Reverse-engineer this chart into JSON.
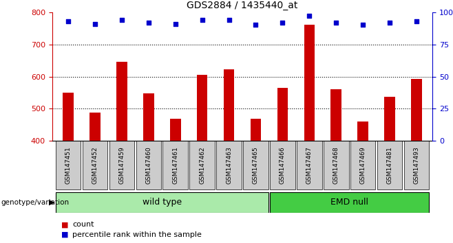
{
  "title": "GDS2884 / 1435440_at",
  "samples": [
    "GSM147451",
    "GSM147452",
    "GSM147459",
    "GSM147460",
    "GSM147461",
    "GSM147462",
    "GSM147463",
    "GSM147465",
    "GSM147466",
    "GSM147467",
    "GSM147468",
    "GSM147469",
    "GSM147481",
    "GSM147493"
  ],
  "counts": [
    550,
    488,
    645,
    548,
    468,
    605,
    622,
    468,
    565,
    760,
    560,
    460,
    538,
    592
  ],
  "percentiles": [
    93,
    91,
    94,
    92,
    91,
    94,
    94,
    90,
    92,
    97,
    92,
    90,
    92,
    93
  ],
  "wild_type_count": 8,
  "emd_null_count": 6,
  "ylim_left": [
    400,
    800
  ],
  "ylim_right": [
    0,
    100
  ],
  "yticks_left": [
    400,
    500,
    600,
    700,
    800
  ],
  "yticks_right": [
    0,
    25,
    50,
    75,
    100
  ],
  "bar_color": "#cc0000",
  "dot_color": "#0000cc",
  "wild_type_color": "#aaeaaa",
  "emd_null_color": "#44cc44",
  "tick_bg_color": "#cccccc",
  "legend_count_color": "#cc0000",
  "legend_pct_color": "#0000cc",
  "bar_width": 0.4
}
